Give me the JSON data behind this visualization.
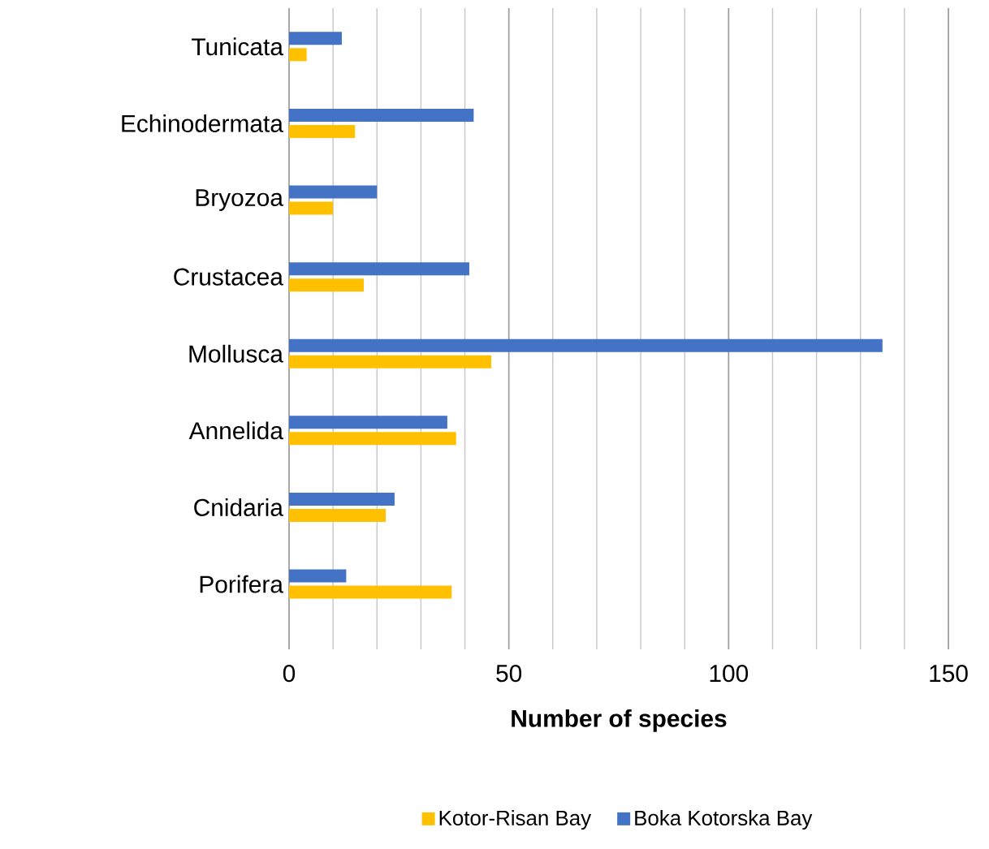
{
  "chart_data": {
    "type": "bar",
    "orientation": "horizontal",
    "xlabel": "Number of species",
    "categories": [
      "Tunicata",
      "Echinodermata",
      "Bryozoa",
      "Crustacea",
      "Mollusca",
      "Annelida",
      "Cnidaria",
      "Porifera"
    ],
    "series": [
      {
        "name": "Kotor-Risan Bay",
        "color": "#ffc000",
        "values": [
          4,
          15,
          10,
          17,
          46,
          38,
          22,
          37
        ]
      },
      {
        "name": "Boka Kotorska Bay",
        "color": "#4472c4",
        "values": [
          12,
          42,
          20,
          41,
          135,
          36,
          24,
          13
        ]
      }
    ],
    "xlim": [
      0,
      150
    ],
    "xticks": [
      0,
      50,
      100,
      150
    ],
    "grid": "x",
    "legend": "bottom"
  }
}
